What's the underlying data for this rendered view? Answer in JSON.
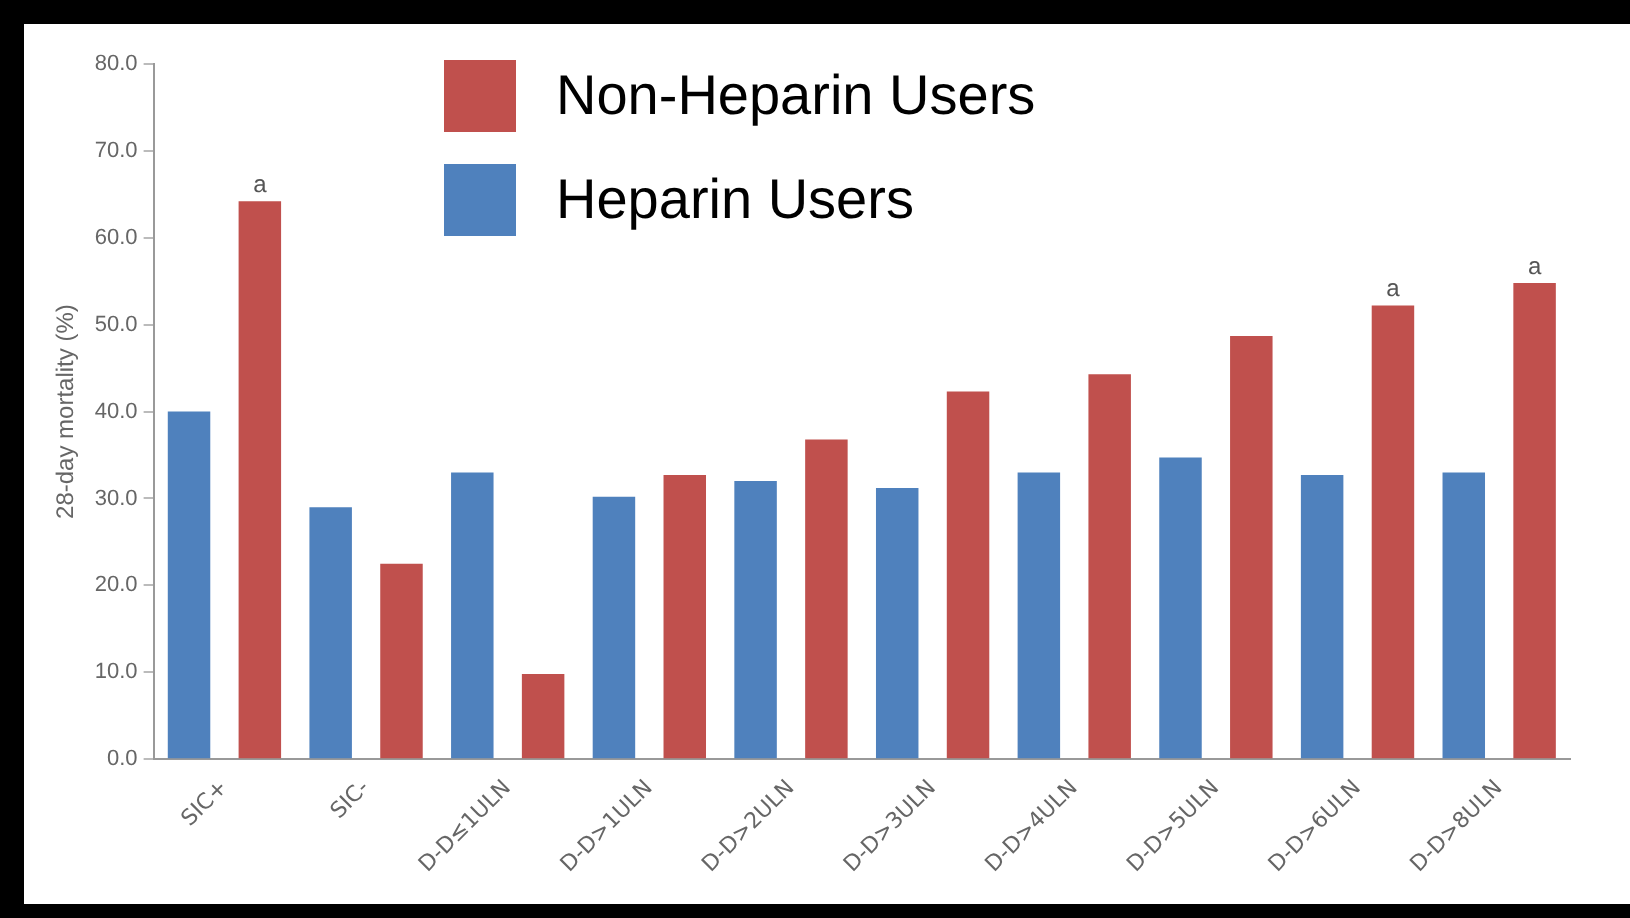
{
  "chart_data": {
    "type": "bar",
    "ylabel": "28-day mortality (%)",
    "categories": [
      "SIC+",
      "SIC-",
      "D-D≤1ULN",
      "D-D>1ULN",
      "D-D>2ULN",
      "D-D>3ULN",
      "D-D>4ULN",
      "D-D>5ULN",
      "D-D>6ULN",
      "D-D>8ULN"
    ],
    "series": [
      {
        "name": "Heparin Users",
        "color": "#4f81bd",
        "values": [
          40.0,
          29.0,
          33.0,
          30.2,
          32.0,
          31.2,
          33.0,
          34.7,
          32.7,
          33.0
        ]
      },
      {
        "name": "Non-Heparin Users",
        "color": "#c0504d",
        "values": [
          64.2,
          22.5,
          9.8,
          32.7,
          36.8,
          42.3,
          44.3,
          48.7,
          52.2,
          54.8
        ],
        "value_labels": [
          "a",
          null,
          null,
          null,
          null,
          null,
          null,
          null,
          "a",
          "a"
        ]
      }
    ],
    "ylim": [
      0,
      80
    ],
    "yticks": [
      {
        "value": 0,
        "label": "0.0"
      },
      {
        "value": 10,
        "label": "10.0"
      },
      {
        "value": 20,
        "label": "20.0"
      },
      {
        "value": 30,
        "label": "30.0"
      },
      {
        "value": 40,
        "label": "40.0"
      },
      {
        "value": 50,
        "label": "50.0"
      },
      {
        "value": 60,
        "label": "60.0"
      },
      {
        "value": 70,
        "label": "70.0"
      },
      {
        "value": 80,
        "label": "80.0"
      }
    ],
    "grid": false,
    "legend": "top"
  }
}
